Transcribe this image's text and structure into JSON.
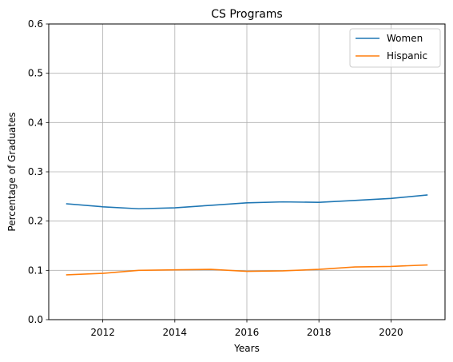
{
  "chart_data": {
    "type": "line",
    "title": "CS Programs",
    "xlabel": "Years",
    "ylabel": "Percentage of Graduates",
    "xlim": [
      2010.5,
      2021.5
    ],
    "ylim": [
      0,
      0.6
    ],
    "xticks": [
      2012,
      2014,
      2016,
      2018,
      2020
    ],
    "xtick_labels": [
      "2012",
      "2014",
      "2016",
      "2018",
      "2020"
    ],
    "yticks": [
      0,
      0.1,
      0.2,
      0.3,
      0.4,
      0.5,
      0.6
    ],
    "ytick_labels": [
      "0.0",
      "0.1",
      "0.2",
      "0.3",
      "0.4",
      "0.5",
      "0.6"
    ],
    "grid": true,
    "legend_position": "top-right",
    "x": [
      2011,
      2012,
      2013,
      2014,
      2015,
      2016,
      2017,
      2018,
      2019,
      2020,
      2021
    ],
    "series": [
      {
        "name": "Women",
        "color": "#1f77b4",
        "values": [
          0.235,
          0.229,
          0.225,
          0.227,
          0.232,
          0.237,
          0.239,
          0.238,
          0.242,
          0.246,
          0.253
        ]
      },
      {
        "name": "Hispanic",
        "color": "#ff7f0e",
        "values": [
          0.091,
          0.094,
          0.1,
          0.101,
          0.102,
          0.098,
          0.099,
          0.102,
          0.107,
          0.108,
          0.111
        ]
      }
    ]
  }
}
